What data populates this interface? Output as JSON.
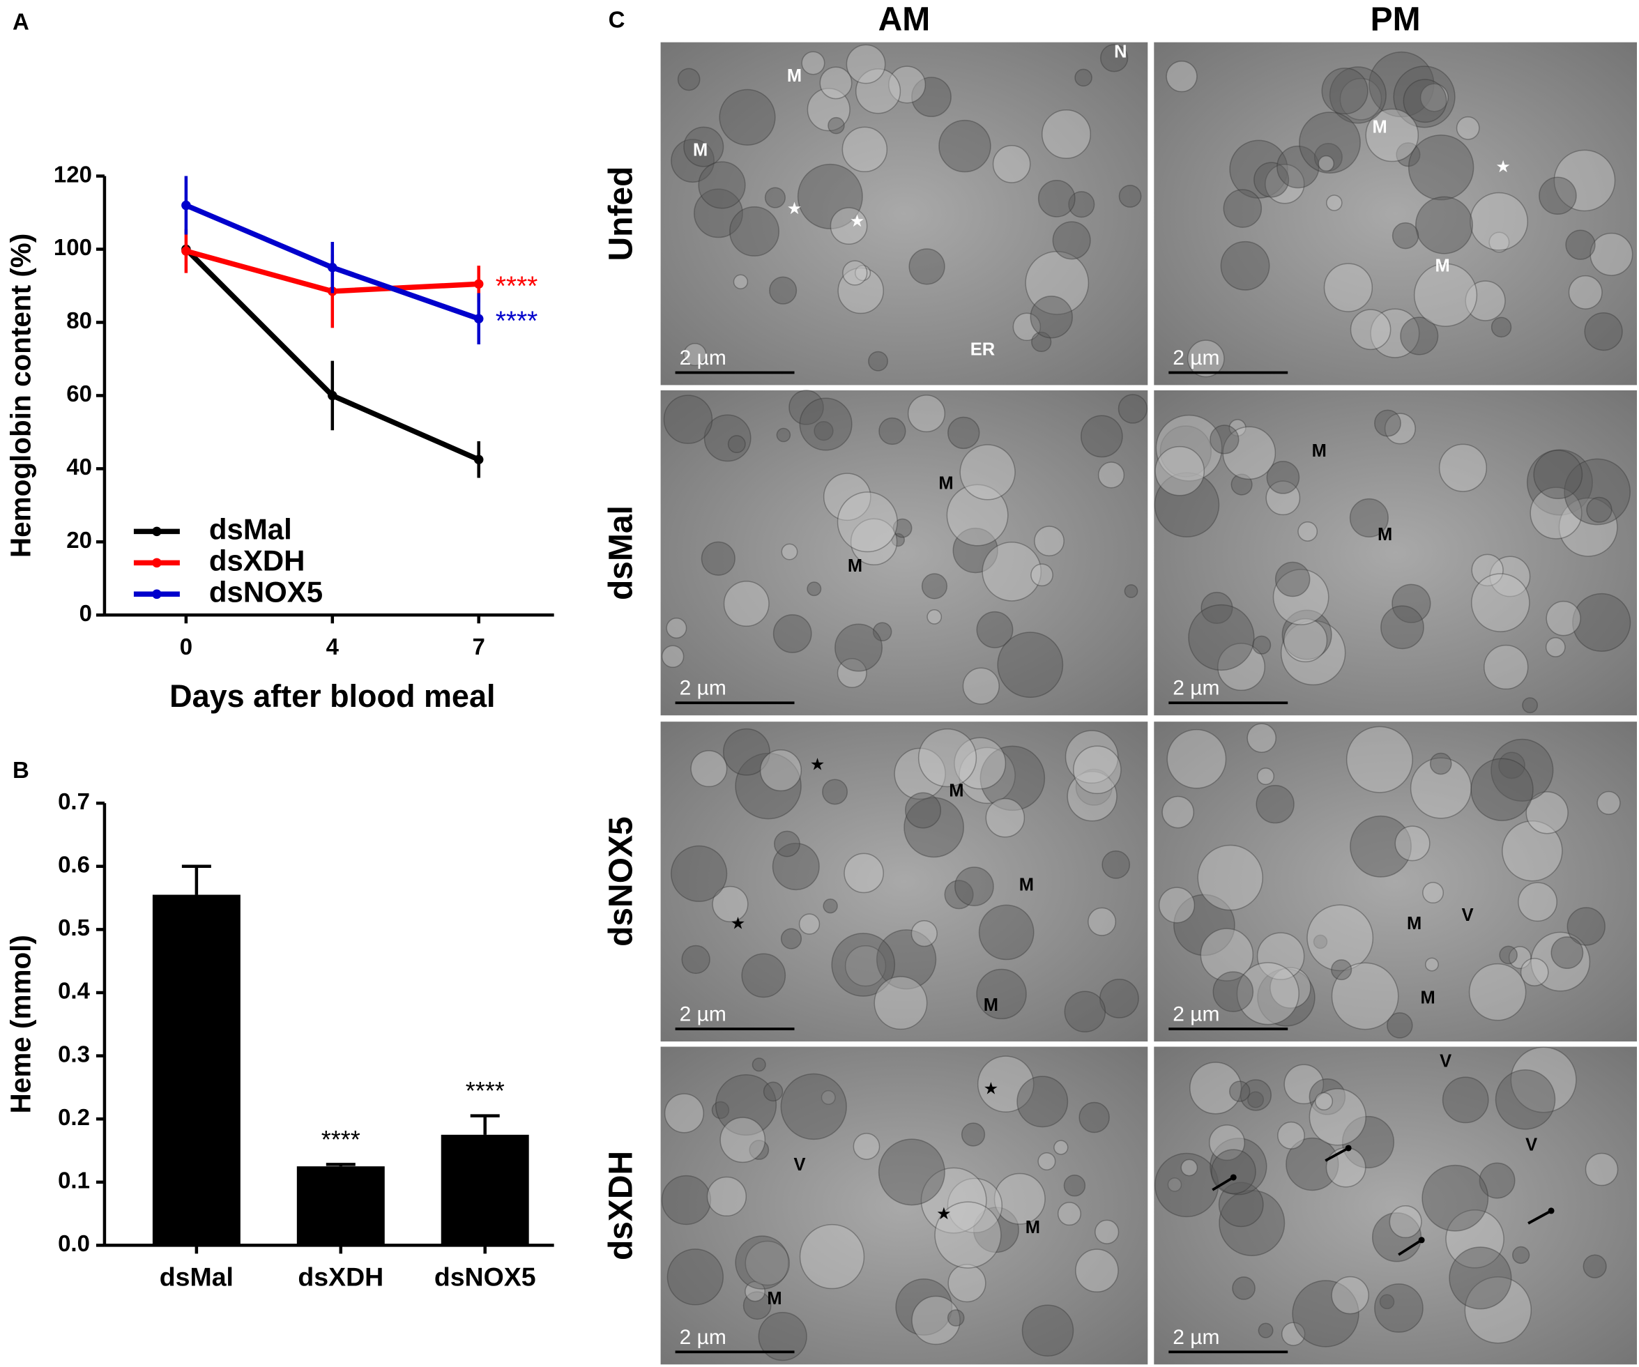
{
  "panel_labels": [
    "A",
    "B",
    "C"
  ],
  "chart_data": [
    {
      "type": "line",
      "x_label": "Days after blood meal",
      "y_label": "Hemoglobin content (%)",
      "categories": [
        "0",
        "4",
        "7"
      ],
      "ylim": [
        0,
        120
      ],
      "yticks": [
        0,
        20,
        40,
        60,
        80,
        100,
        120
      ],
      "legend": "lower left",
      "series": [
        {
          "name": "dsMal",
          "color": "#000000",
          "values": [
            100,
            60,
            42.5
          ],
          "errors": [
            1,
            9.5,
            5
          ],
          "significance": null
        },
        {
          "name": "dsXDH",
          "color": "#ff0000",
          "values": [
            99.5,
            88.5,
            90.5
          ],
          "errors": [
            6,
            10,
            5
          ],
          "significance": "****"
        },
        {
          "name": "dsNOX5",
          "color": "#0000cc",
          "values": [
            112,
            95,
            81
          ],
          "errors": [
            8,
            7,
            7
          ],
          "significance": "****"
        }
      ]
    },
    {
      "type": "bar",
      "y_label": "Heme (mmol)",
      "color": "#000000",
      "categories": [
        "dsMal",
        "dsXDH",
        "dsNOX5"
      ],
      "values": [
        0.555,
        0.125,
        0.175
      ],
      "errors": [
        0.045,
        0.003,
        0.03
      ],
      "significance": [
        null,
        "****",
        "****"
      ],
      "ylim": [
        0,
        0.7
      ],
      "yticks": [
        {
          "value": 0,
          "label": "0.0"
        },
        0.1,
        0.2,
        0.3,
        0.4,
        0.5,
        0.6,
        0.7
      ]
    }
  ],
  "micrographs": {
    "columns": [
      "AM",
      "PM"
    ],
    "rows": [
      {
        "label": "Unfed",
        "images": [
          {
            "labels": [
              "M",
              "M",
              "N",
              "ER"
            ],
            "scale_bar": "2 µm"
          },
          {
            "labels": [
              "M",
              "M"
            ],
            "scale_bar": "2 µm"
          }
        ]
      },
      {
        "label": "dsMal",
        "images": [
          {
            "labels": [
              "M",
              "M"
            ],
            "scale_bar": "2 µm"
          },
          {
            "labels": [
              "M",
              "M"
            ],
            "scale_bar": "2 µm"
          }
        ]
      },
      {
        "label": "dsNOX5",
        "images": [
          {
            "labels": [
              "M",
              "M",
              "M"
            ],
            "scale_bar": "2 µm"
          },
          {
            "labels": [
              "M",
              "V",
              "M"
            ],
            "scale_bar": "2 µm"
          }
        ]
      },
      {
        "label": "dsXDH",
        "images": [
          {
            "labels": [
              "V",
              "M",
              "M"
            ],
            "scale_bar": "2 µm"
          },
          {
            "labels": [
              "V",
              "V"
            ],
            "scale_bar": "2 µm"
          }
        ]
      }
    ]
  }
}
